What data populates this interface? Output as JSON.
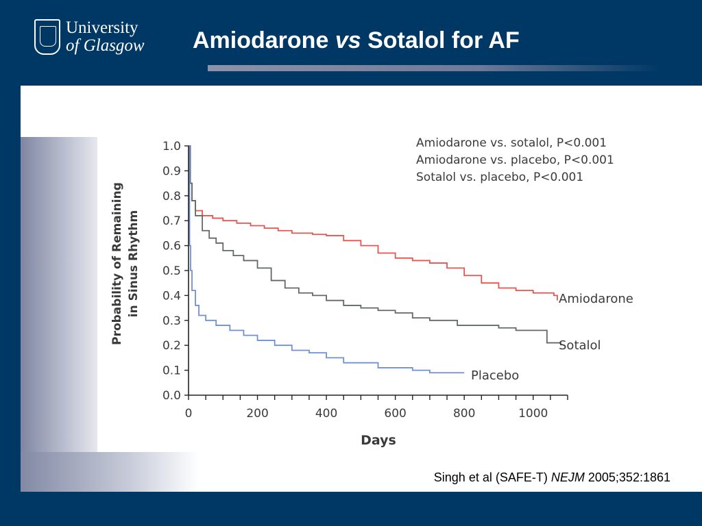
{
  "slide": {
    "title_part1": "Amiodarone",
    "title_vs": "vs",
    "title_part2": "Sotalol for AF",
    "logo_line1": "University",
    "logo_line2": "of Glasgow",
    "citation_part1": "Singh et al (SAFE-T)",
    "citation_journal": "NEJM",
    "citation_part2": "2005;352:1861"
  },
  "colors": {
    "background": "#003865",
    "amiodarone": "#e8534d",
    "sotalol": "#5f6a66",
    "placebo": "#6f8fd6"
  },
  "chart_data": {
    "type": "line",
    "xlabel": "Days",
    "ylabel_line1": "Probability of Remaining",
    "ylabel_line2": "in Sinus Rhythm",
    "xlim": [
      0,
      1100
    ],
    "ylim": [
      0,
      1.0
    ],
    "x_ticks": [
      "0",
      "200",
      "400",
      "600",
      "800",
      "1000"
    ],
    "y_ticks": [
      "0.0",
      "0.1",
      "0.2",
      "0.3",
      "0.4",
      "0.5",
      "0.6",
      "0.7",
      "0.8",
      "0.9",
      "1.0"
    ],
    "annotations": [
      "Amiodarone vs. sotalol, P<0.001",
      "Amiodarone vs. placebo, P<0.001",
      "Sotalol vs. placebo, P<0.001"
    ],
    "series": [
      {
        "name": "Amiodarone",
        "x": [
          0,
          5,
          10,
          20,
          40,
          70,
          100,
          140,
          180,
          220,
          260,
          300,
          360,
          400,
          450,
          500,
          550,
          600,
          650,
          700,
          750,
          800,
          850,
          900,
          950,
          1000,
          1060,
          1070
        ],
        "y": [
          1.0,
          0.85,
          0.78,
          0.74,
          0.72,
          0.71,
          0.7,
          0.69,
          0.68,
          0.67,
          0.66,
          0.65,
          0.645,
          0.64,
          0.62,
          0.6,
          0.57,
          0.55,
          0.54,
          0.53,
          0.51,
          0.48,
          0.45,
          0.43,
          0.42,
          0.41,
          0.4,
          0.38
        ]
      },
      {
        "name": "Sotalol",
        "x": [
          0,
          5,
          10,
          20,
          40,
          60,
          80,
          100,
          130,
          160,
          200,
          240,
          280,
          320,
          360,
          400,
          450,
          500,
          550,
          600,
          650,
          700,
          780,
          900,
          950,
          1000,
          1040,
          1080
        ],
        "y": [
          1.0,
          0.85,
          0.78,
          0.72,
          0.66,
          0.63,
          0.61,
          0.58,
          0.56,
          0.54,
          0.51,
          0.46,
          0.43,
          0.41,
          0.4,
          0.38,
          0.36,
          0.35,
          0.34,
          0.33,
          0.31,
          0.3,
          0.28,
          0.27,
          0.26,
          0.26,
          0.21,
          0.2
        ]
      },
      {
        "name": "Placebo",
        "x": [
          0,
          3,
          6,
          10,
          20,
          30,
          50,
          80,
          120,
          160,
          200,
          250,
          300,
          350,
          400,
          450,
          550,
          650,
          700,
          800
        ],
        "y": [
          1.0,
          0.6,
          0.5,
          0.42,
          0.36,
          0.32,
          0.3,
          0.28,
          0.26,
          0.24,
          0.22,
          0.2,
          0.18,
          0.17,
          0.15,
          0.13,
          0.11,
          0.1,
          0.09,
          0.09
        ]
      }
    ]
  }
}
